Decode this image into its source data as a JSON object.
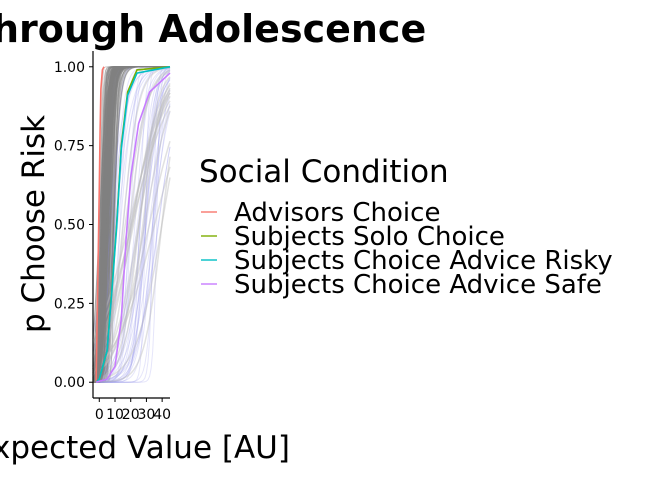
{
  "chart_data": {
    "type": "line",
    "title": "hrough Adolescence",
    "xlabel": "xpected Value [AU]",
    "ylabel": "p Choose Risk",
    "x_ticks": [
      "0",
      "10",
      "20",
      "30",
      "40"
    ],
    "y_ticks": [
      "0.00",
      "0.25",
      "0.50",
      "0.75",
      "1.00"
    ],
    "xlim": [
      -4,
      45
    ],
    "ylim": [
      -0.05,
      1.05
    ],
    "grid": false,
    "legend": {
      "title": "Social Condition",
      "position": "right"
    },
    "series": [
      {
        "name": "Advisors Choice",
        "color": "#F8766D",
        "points": [
          [
            -2,
            0.0
          ],
          [
            -1,
            0.3
          ],
          [
            0,
            0.62
          ],
          [
            0.5,
            0.8
          ],
          [
            1,
            0.93
          ],
          [
            2,
            0.99
          ],
          [
            3,
            1.0
          ]
        ]
      },
      {
        "name": "Subjects Solo Choice",
        "color": "#7CAE00",
        "points": [
          [
            -2,
            0.0
          ],
          [
            0,
            0.01
          ],
          [
            5,
            0.1
          ],
          [
            8,
            0.3
          ],
          [
            11,
            0.5
          ],
          [
            14,
            0.75
          ],
          [
            18,
            0.92
          ],
          [
            24,
            0.99
          ],
          [
            45,
            1.0
          ]
        ]
      },
      {
        "name": "Subjects Choice Advice Risky",
        "color": "#00BFC4",
        "points": [
          [
            -2,
            0.0
          ],
          [
            0,
            0.01
          ],
          [
            5,
            0.1
          ],
          [
            8,
            0.29
          ],
          [
            11,
            0.49
          ],
          [
            14,
            0.74
          ],
          [
            18,
            0.91
          ],
          [
            24,
            0.98
          ],
          [
            45,
            1.0
          ]
        ]
      },
      {
        "name": "Subjects Choice Advice Safe",
        "color": "#C77CFF",
        "points": [
          [
            -2,
            0.0
          ],
          [
            5,
            0.01
          ],
          [
            10,
            0.05
          ],
          [
            14,
            0.2
          ],
          [
            17,
            0.45
          ],
          [
            20,
            0.65
          ],
          [
            25,
            0.82
          ],
          [
            32,
            0.92
          ],
          [
            45,
            0.98
          ]
        ]
      }
    ]
  }
}
